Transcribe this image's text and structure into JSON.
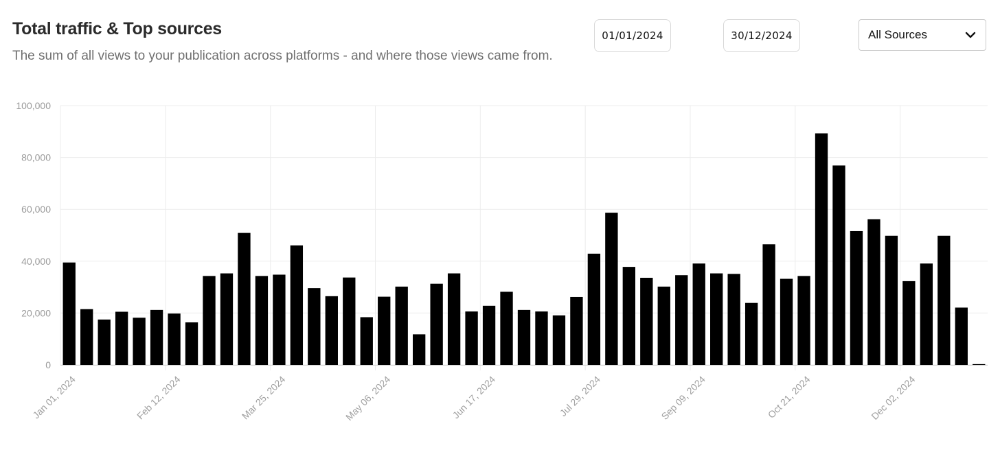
{
  "header": {
    "title": "Total traffic & Top sources",
    "subtitle": "The sum of all views to your publication across platforms - and where those views came from."
  },
  "filters": {
    "start_date": "01/01/2024",
    "end_date": "30/12/2024",
    "source_select": {
      "selected": "All Sources",
      "icon": "chevron-down-icon"
    }
  },
  "colors": {
    "bar": "#000000",
    "grid": "#ececec",
    "axis": "#cfcfcf",
    "tick_text": "#9a9a9a"
  },
  "chart_data": {
    "type": "bar",
    "title": "",
    "xlabel": "",
    "ylabel": "",
    "ylim": [
      0,
      100000
    ],
    "y_ticks": [
      0,
      20000,
      40000,
      60000,
      80000,
      100000
    ],
    "y_tick_labels": [
      "0",
      "20,000",
      "40,000",
      "60,000",
      "80,000",
      "100,000"
    ],
    "x_tick_labels": [
      "Jan 01, 2024",
      "Feb 12, 2024",
      "Mar 25, 2024",
      "May 06, 2024",
      "Jun 17, 2024",
      "Jul 29, 2024",
      "Sep 09, 2024",
      "Oct 21, 2024",
      "Dec 02, 2024"
    ],
    "x_tick_every": 6,
    "grid": true,
    "legend": "none",
    "categories": [
      "2024-01-01",
      "2024-01-08",
      "2024-01-15",
      "2024-01-22",
      "2024-01-29",
      "2024-02-05",
      "2024-02-12",
      "2024-02-19",
      "2024-02-26",
      "2024-03-04",
      "2024-03-11",
      "2024-03-18",
      "2024-03-25",
      "2024-04-01",
      "2024-04-08",
      "2024-04-15",
      "2024-04-22",
      "2024-04-29",
      "2024-05-06",
      "2024-05-13",
      "2024-05-20",
      "2024-05-27",
      "2024-06-03",
      "2024-06-10",
      "2024-06-17",
      "2024-06-24",
      "2024-07-01",
      "2024-07-08",
      "2024-07-15",
      "2024-07-22",
      "2024-07-29",
      "2024-08-05",
      "2024-08-12",
      "2024-08-19",
      "2024-08-26",
      "2024-09-02",
      "2024-09-09",
      "2024-09-16",
      "2024-09-23",
      "2024-09-30",
      "2024-10-07",
      "2024-10-14",
      "2024-10-21",
      "2024-10-28",
      "2024-11-04",
      "2024-11-11",
      "2024-11-18",
      "2024-11-25",
      "2024-12-02",
      "2024-12-09",
      "2024-12-16",
      "2024-12-23",
      "2024-12-30"
    ],
    "values": [
      39500,
      21500,
      17500,
      20500,
      18200,
      21200,
      19800,
      16400,
      34300,
      35300,
      50900,
      34300,
      34800,
      46100,
      29600,
      26500,
      33700,
      18400,
      26300,
      30200,
      11800,
      31300,
      35300,
      20600,
      22800,
      28200,
      21200,
      20600,
      19100,
      26200,
      42900,
      58700,
      37800,
      33600,
      30200,
      34600,
      39100,
      35300,
      35100,
      23900,
      46500,
      33200,
      34300,
      89300,
      76900,
      51600,
      56200,
      49800,
      32300,
      39100,
      49800,
      22100,
      300
    ]
  }
}
